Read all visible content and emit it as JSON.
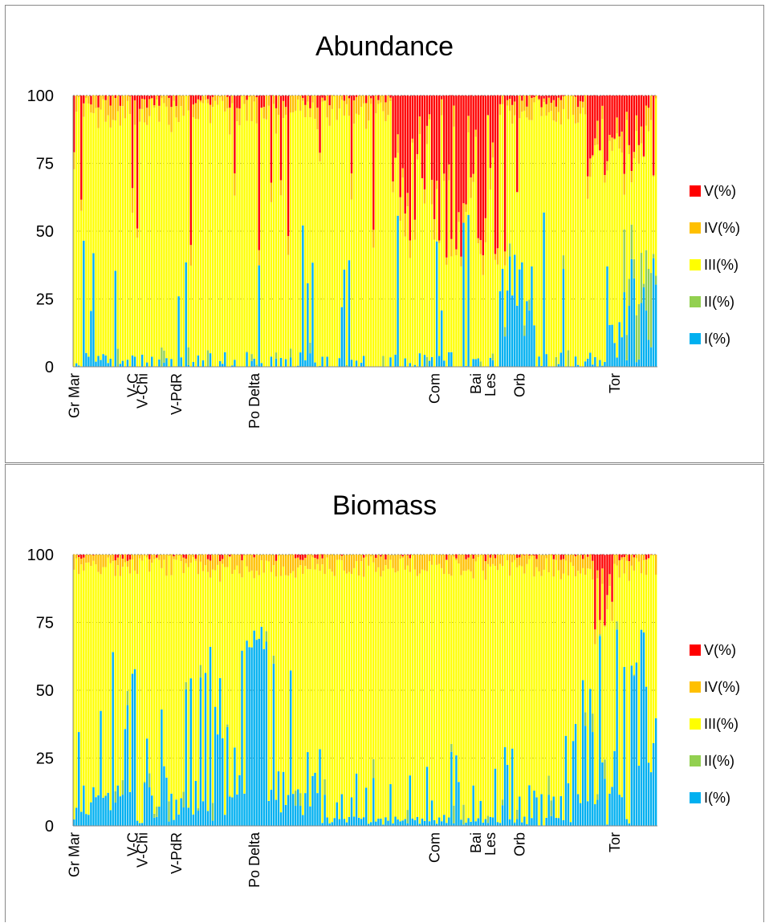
{
  "colors": {
    "V": "#ff0000",
    "IV": "#ffc000",
    "III": "#ffff00",
    "II": "#92d050",
    "I": "#00b0f0",
    "grid": "#6d6d6d",
    "axis": "#888888"
  },
  "chart_data": [
    {
      "type": "bar",
      "stacked": true,
      "percent": true,
      "title": "Abundance",
      "ylim": [
        0,
        100
      ],
      "yticks": [
        0,
        25,
        50,
        75,
        100
      ],
      "grid": true,
      "legend_position": "right",
      "legend": [
        "V(%)",
        "IV(%)",
        "III(%)",
        "II(%)",
        "I(%)"
      ],
      "bar_count": 240,
      "site_labels": [
        {
          "label": "Gr Mar",
          "bar": 0
        },
        {
          "label": "V-C",
          "bar": 24
        },
        {
          "label": "V-Chi",
          "bar": 28
        },
        {
          "label": "V-PdR",
          "bar": 42
        },
        {
          "label": "Po Delta",
          "bar": 74
        },
        {
          "label": "Com",
          "bar": 148
        },
        {
          "label": "Bai",
          "bar": 165
        },
        {
          "label": "Les",
          "bar": 171
        },
        {
          "label": "Orb",
          "bar": 183
        },
        {
          "label": "Tor",
          "bar": 222
        }
      ],
      "series_breaks": {
        "note_free": true
      }
    },
    {
      "type": "bar",
      "stacked": true,
      "percent": true,
      "title": "Biomass",
      "ylim": [
        0,
        100
      ],
      "yticks": [
        0,
        25,
        50,
        75,
        100
      ],
      "grid": true,
      "legend_position": "right",
      "legend": [
        "V(%)",
        "IV(%)",
        "III(%)",
        "II(%)",
        "I(%)"
      ],
      "bar_count": 240,
      "site_labels": [
        {
          "label": "Gr Mar",
          "bar": 0
        },
        {
          "label": "V-C",
          "bar": 24
        },
        {
          "label": "V-Chi",
          "bar": 28
        },
        {
          "label": "V-PdR",
          "bar": 42
        },
        {
          "label": "Po Delta",
          "bar": 74
        },
        {
          "label": "Com",
          "bar": 148
        },
        {
          "label": "Bai",
          "bar": 165
        },
        {
          "label": "Les",
          "bar": 171
        },
        {
          "label": "Orb",
          "bar": 183
        },
        {
          "label": "Tor",
          "bar": 222
        }
      ]
    }
  ]
}
